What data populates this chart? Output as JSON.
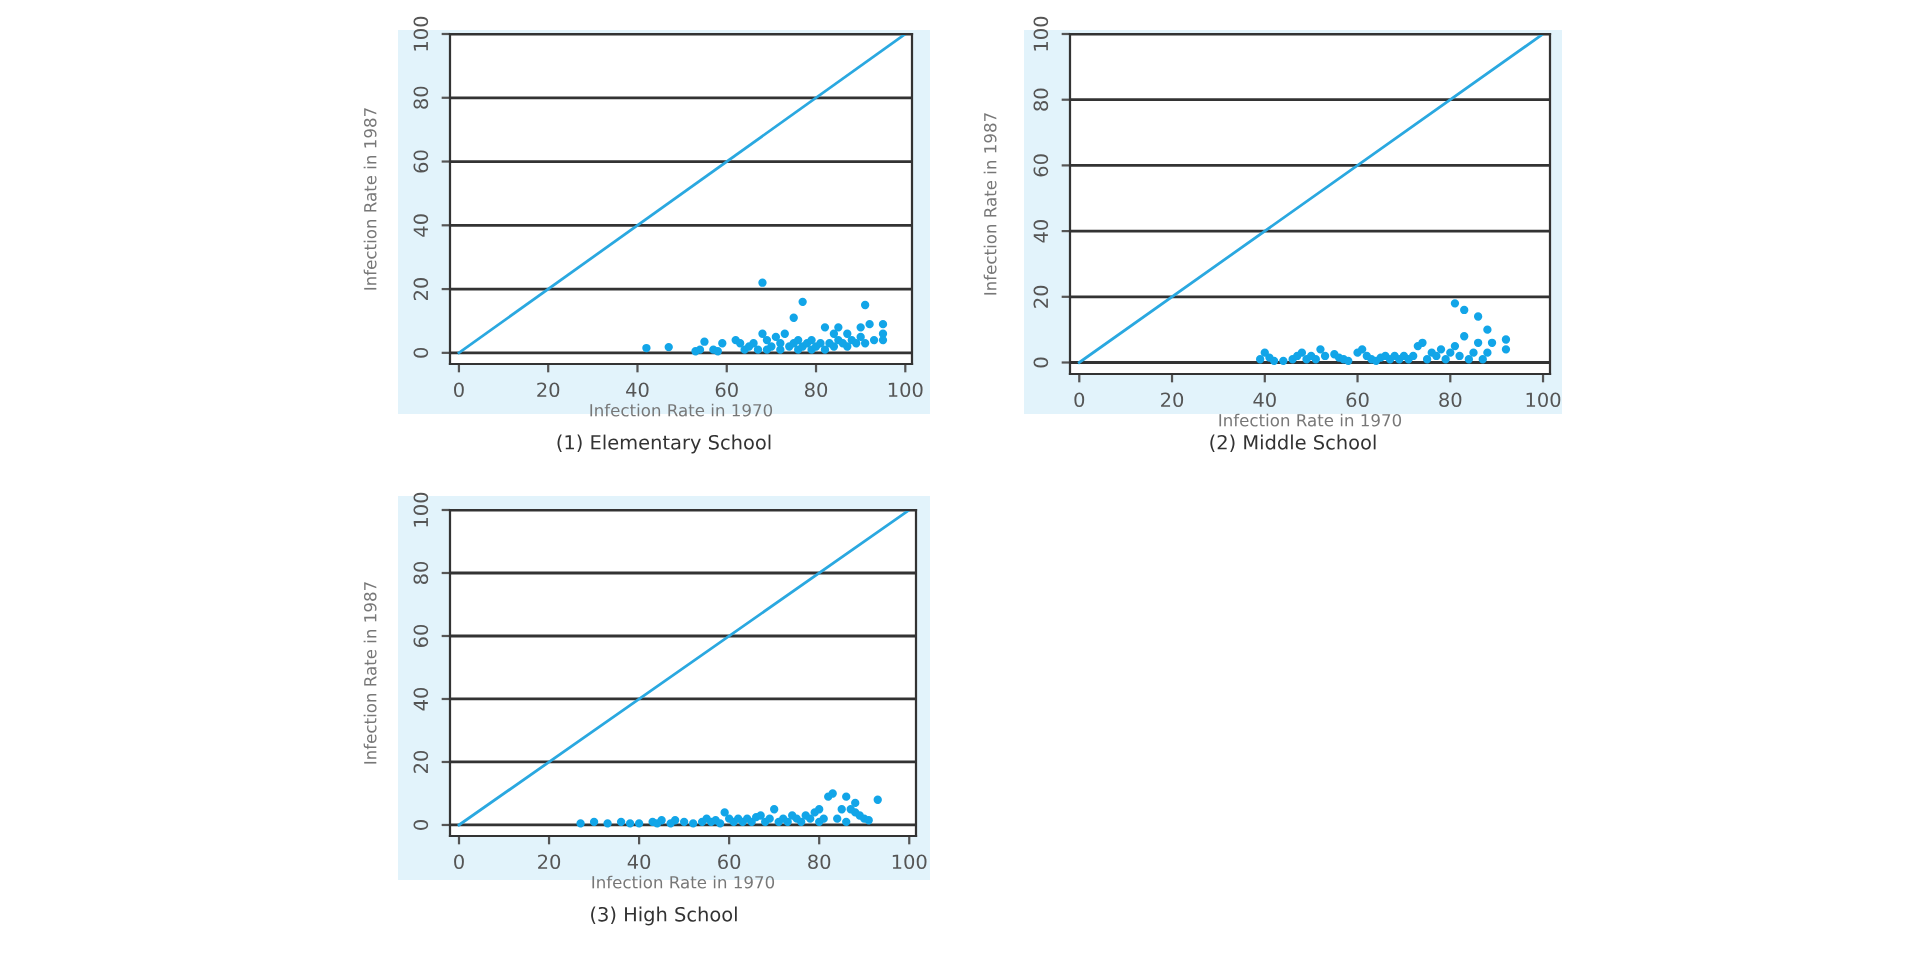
{
  "chart_data": [
    {
      "type": "scatter",
      "title": "(1) Elementary School",
      "xlabel": "Infection Rate in 1970",
      "ylabel": "Infection Rate in 1987",
      "xlim": [
        -2,
        101.5
      ],
      "ylim": [
        -3.5,
        100
      ],
      "xticks": [
        0,
        20,
        40,
        60,
        80,
        100
      ],
      "yticks": [
        0,
        20,
        40,
        60,
        80,
        100
      ],
      "grid": "y",
      "marker": "circle",
      "series": [
        {
          "type": "scatter",
          "color": "#12a5e8",
          "x": [
            42,
            47,
            53,
            54,
            55,
            57,
            58,
            59,
            62,
            63,
            64,
            65,
            66,
            67,
            68,
            68,
            69,
            69,
            70,
            71,
            72,
            72,
            73,
            74,
            75,
            75,
            76,
            76,
            77,
            77,
            78,
            79,
            79,
            80,
            81,
            82,
            82,
            83,
            84,
            84,
            85,
            85,
            86,
            87,
            87,
            88,
            89,
            90,
            90,
            91,
            91,
            92,
            93,
            95,
            95,
            95
          ],
          "values": [
            1.5,
            1.8,
            0.5,
            1,
            3.5,
            1,
            0.5,
            3,
            4,
            3,
            1,
            2,
            3,
            1,
            22,
            6,
            1,
            4,
            2,
            5,
            1,
            3,
            6,
            2,
            11,
            3,
            1,
            4,
            16,
            2,
            3,
            1,
            4,
            2,
            3,
            8,
            1,
            3,
            6,
            2,
            8,
            4,
            3,
            6,
            2,
            4,
            3,
            8,
            5,
            15,
            3,
            9,
            4,
            9,
            6,
            4
          ]
        },
        {
          "type": "line",
          "color": "#2aa8e0",
          "line_style": "solid",
          "marker": "none",
          "x": [
            0,
            100
          ],
          "values": [
            0,
            100
          ]
        }
      ]
    },
    {
      "type": "scatter",
      "title": "(2) Middle School",
      "xlabel": "Infection Rate in 1970",
      "ylabel": "Infection Rate in 1987",
      "xlim": [
        -2,
        101.5
      ],
      "ylim": [
        -3.5,
        100
      ],
      "xticks": [
        0,
        20,
        40,
        60,
        80,
        100
      ],
      "yticks": [
        0,
        20,
        40,
        60,
        80,
        100
      ],
      "grid": "y",
      "marker": "circle",
      "series": [
        {
          "type": "scatter",
          "color": "#12a5e8",
          "x": [
            39,
            40,
            41,
            42,
            44,
            46,
            47,
            48,
            49,
            50,
            51,
            52,
            53,
            55,
            56,
            57,
            58,
            60,
            61,
            62,
            63,
            64,
            65,
            66,
            67,
            68,
            69,
            70,
            71,
            72,
            73,
            74,
            75,
            76,
            77,
            78,
            79,
            80,
            81,
            81,
            82,
            83,
            83,
            84,
            85,
            86,
            86,
            87,
            88,
            88,
            89,
            92,
            92
          ],
          "values": [
            1,
            3,
            1.5,
            0.5,
            0.5,
            1,
            2,
            3,
            1,
            2,
            1,
            4,
            2,
            2.5,
            1.5,
            1,
            0.5,
            3,
            4,
            2,
            1,
            0.5,
            1.5,
            2,
            1,
            2,
            1,
            2,
            1,
            2,
            5,
            6,
            1,
            3,
            2,
            4,
            1,
            3,
            18,
            5,
            2,
            8,
            16,
            1,
            3,
            6,
            14,
            1,
            10,
            3,
            6,
            7,
            4
          ]
        },
        {
          "type": "line",
          "color": "#2aa8e0",
          "line_style": "solid",
          "marker": "none",
          "x": [
            0,
            100
          ],
          "values": [
            0,
            100
          ]
        }
      ]
    },
    {
      "type": "scatter",
      "title": "(3) High School",
      "xlabel": "Infection Rate in 1970",
      "ylabel": "Infection Rate in 1987",
      "xlim": [
        -2,
        101.5
      ],
      "ylim": [
        -3.5,
        100
      ],
      "xticks": [
        0,
        20,
        40,
        60,
        80,
        100
      ],
      "yticks": [
        0,
        20,
        40,
        60,
        80,
        100
      ],
      "grid": "y",
      "marker": "circle",
      "series": [
        {
          "type": "scatter",
          "color": "#12a5e8",
          "x": [
            27,
            30,
            33,
            36,
            38,
            40,
            43,
            44,
            45,
            47,
            48,
            50,
            52,
            54,
            55,
            56,
            57,
            58,
            59,
            60,
            61,
            62,
            63,
            64,
            65,
            66,
            67,
            68,
            69,
            70,
            71,
            72,
            73,
            74,
            75,
            76,
            77,
            78,
            79,
            80,
            80,
            81,
            82,
            83,
            84,
            85,
            86,
            86,
            87,
            88,
            88,
            89,
            90,
            91,
            93
          ],
          "values": [
            0.5,
            1,
            0.5,
            1,
            0.5,
            0.5,
            1,
            0.5,
            1.5,
            0.5,
            1.5,
            1,
            0.5,
            1,
            2,
            1,
            1.5,
            0.5,
            4,
            2,
            1,
            2,
            1,
            2,
            1,
            2.5,
            3,
            1,
            2,
            5,
            1,
            2,
            1,
            3,
            2,
            1,
            3,
            2,
            4,
            5,
            1,
            2,
            9,
            10,
            2,
            5,
            9,
            1,
            5,
            7,
            4,
            3,
            2,
            1.5,
            8
          ]
        },
        {
          "type": "line",
          "color": "#2aa8e0",
          "line_style": "solid",
          "marker": "none",
          "x": [
            0,
            100
          ],
          "values": [
            0,
            100
          ]
        }
      ]
    }
  ]
}
